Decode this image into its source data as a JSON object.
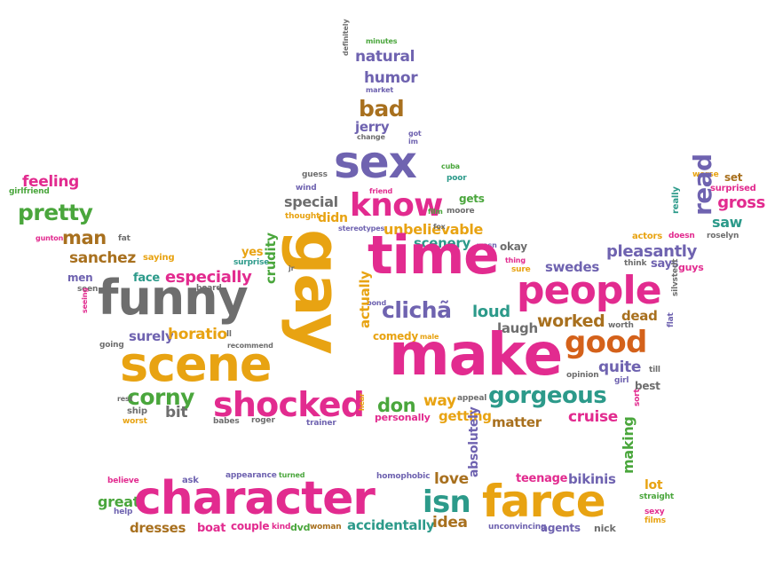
{
  "palette": {
    "pink": "#e22b8f",
    "purple": "#6f63b0",
    "orange": "#e8a312",
    "green": "#4aa63c",
    "gray": "#6e6e6e",
    "teal": "#2c9a8a",
    "brown": "#a8701e",
    "burnt": "#d4611a"
  },
  "words": [
    {
      "text": "minutes",
      "color": "green"
    },
    {
      "text": "natural",
      "color": "purple"
    },
    {
      "text": "definitely",
      "color": "gray"
    },
    {
      "text": "humor",
      "color": "purple"
    },
    {
      "text": "market",
      "color": "purple"
    },
    {
      "text": "bad",
      "color": "brown"
    },
    {
      "text": "jerry",
      "color": "purple"
    },
    {
      "text": "got",
      "color": "purple"
    },
    {
      "text": "change",
      "color": "gray"
    },
    {
      "text": "im",
      "color": "purple"
    },
    {
      "text": "sex",
      "color": "purple"
    },
    {
      "text": "cuba",
      "color": "green"
    },
    {
      "text": "poor",
      "color": "teal"
    },
    {
      "text": "guess",
      "color": "gray"
    },
    {
      "text": "wind",
      "color": "purple"
    },
    {
      "text": "friend",
      "color": "pink"
    },
    {
      "text": "special",
      "color": "gray"
    },
    {
      "text": "know",
      "color": "pink"
    },
    {
      "text": "gets",
      "color": "green"
    },
    {
      "text": "thought",
      "color": "orange"
    },
    {
      "text": "didn",
      "color": "orange"
    },
    {
      "text": "film",
      "color": "green"
    },
    {
      "text": "moore",
      "color": "gray"
    },
    {
      "text": "unbelievable",
      "color": "orange"
    },
    {
      "text": "stereotypes",
      "color": "purple"
    },
    {
      "text": "scenery",
      "color": "teal"
    },
    {
      "text": "wasn",
      "color": "purple"
    },
    {
      "text": "okay",
      "color": "gray"
    },
    {
      "text": "feeling",
      "color": "pink"
    },
    {
      "text": "girlfriend",
      "color": "green"
    },
    {
      "text": "pretty",
      "color": "green"
    },
    {
      "text": "man",
      "color": "brown"
    },
    {
      "text": "fat",
      "color": "gray"
    },
    {
      "text": "gunton",
      "color": "pink"
    },
    {
      "text": "sanchez",
      "color": "brown"
    },
    {
      "text": "saying",
      "color": "orange"
    },
    {
      "text": "yes",
      "color": "orange"
    },
    {
      "text": "surprise",
      "color": "teal"
    },
    {
      "text": "crudity",
      "color": "green"
    },
    {
      "text": "gay",
      "color": "orange"
    },
    {
      "text": "time",
      "color": "pink"
    },
    {
      "text": "thing",
      "color": "pink"
    },
    {
      "text": "sure",
      "color": "orange"
    },
    {
      "text": "men",
      "color": "purple"
    },
    {
      "text": "seen",
      "color": "gray"
    },
    {
      "text": "face",
      "color": "teal"
    },
    {
      "text": "especially",
      "color": "pink"
    },
    {
      "text": "board",
      "color": "gray"
    },
    {
      "text": "funny",
      "color": "gray"
    },
    {
      "text": "seeing",
      "color": "pink"
    },
    {
      "text": "jr",
      "color": "gray"
    },
    {
      "text": "clichã",
      "color": "purple"
    },
    {
      "text": "bond",
      "color": "purple"
    },
    {
      "text": "loud",
      "color": "teal"
    },
    {
      "text": "people",
      "color": "pink"
    },
    {
      "text": "worse",
      "color": "orange"
    },
    {
      "text": "set",
      "color": "brown"
    },
    {
      "text": "surprised",
      "color": "pink"
    },
    {
      "text": "really",
      "color": "teal"
    },
    {
      "text": "read",
      "color": "purple"
    },
    {
      "text": "gross",
      "color": "pink"
    },
    {
      "text": "saw",
      "color": "teal"
    },
    {
      "text": "doesn",
      "color": "pink"
    },
    {
      "text": "roselyn",
      "color": "gray"
    },
    {
      "text": "actors",
      "color": "orange"
    },
    {
      "text": "pleasantly",
      "color": "purple"
    },
    {
      "text": "think",
      "color": "gray"
    },
    {
      "text": "says",
      "color": "purple"
    },
    {
      "text": "guys",
      "color": "pink"
    },
    {
      "text": "swedes",
      "color": "purple"
    },
    {
      "text": "silvstedt",
      "color": "gray"
    },
    {
      "text": "worked",
      "color": "brown"
    },
    {
      "text": "dead",
      "color": "brown"
    },
    {
      "text": "flat",
      "color": "purple"
    },
    {
      "text": "worth",
      "color": "gray"
    },
    {
      "text": "good",
      "color": "burnt"
    },
    {
      "text": "quite",
      "color": "purple"
    },
    {
      "text": "till",
      "color": "gray"
    },
    {
      "text": "opinion",
      "color": "gray"
    },
    {
      "text": "girl",
      "color": "purple"
    },
    {
      "text": "best",
      "color": "gray"
    },
    {
      "text": "surely",
      "color": "purple"
    },
    {
      "text": "horatio",
      "color": "orange"
    },
    {
      "text": "ll",
      "color": "gray"
    },
    {
      "text": "going",
      "color": "gray"
    },
    {
      "text": "recommend",
      "color": "gray"
    },
    {
      "text": "actually",
      "color": "orange"
    },
    {
      "text": "laugh",
      "color": "gray"
    },
    {
      "text": "comedy",
      "color": "orange"
    },
    {
      "text": "male",
      "color": "orange"
    },
    {
      "text": "scene",
      "color": "orange"
    },
    {
      "text": "make",
      "color": "pink"
    },
    {
      "text": "corny",
      "color": "green"
    },
    {
      "text": "shocked",
      "color": "pink"
    },
    {
      "text": "don",
      "color": "green"
    },
    {
      "text": "way",
      "color": "orange"
    },
    {
      "text": "appeal",
      "color": "gray"
    },
    {
      "text": "gorgeous",
      "color": "teal"
    },
    {
      "text": "cruise",
      "color": "pink"
    },
    {
      "text": "sort",
      "color": "pink"
    },
    {
      "text": "ship",
      "color": "gray"
    },
    {
      "text": "bit",
      "color": "gray"
    },
    {
      "text": "rest",
      "color": "gray"
    },
    {
      "text": "worst",
      "color": "orange"
    },
    {
      "text": "babes",
      "color": "gray"
    },
    {
      "text": "roger",
      "color": "gray"
    },
    {
      "text": "trainer",
      "color": "purple"
    },
    {
      "text": "personally",
      "color": "pink"
    },
    {
      "text": "getting",
      "color": "orange"
    },
    {
      "text": "matter",
      "color": "brown"
    },
    {
      "text": "hear",
      "color": "orange"
    },
    {
      "text": "believe",
      "color": "pink"
    },
    {
      "text": "ask",
      "color": "purple"
    },
    {
      "text": "appearance",
      "color": "purple"
    },
    {
      "text": "turned",
      "color": "green"
    },
    {
      "text": "homophobic",
      "color": "purple"
    },
    {
      "text": "love",
      "color": "brown"
    },
    {
      "text": "teenage",
      "color": "pink"
    },
    {
      "text": "bikinis",
      "color": "purple"
    },
    {
      "text": "making",
      "color": "green"
    },
    {
      "text": "lot",
      "color": "orange"
    },
    {
      "text": "great",
      "color": "green"
    },
    {
      "text": "help",
      "color": "purple"
    },
    {
      "text": "character",
      "color": "pink"
    },
    {
      "text": "isn",
      "color": "teal"
    },
    {
      "text": "absolutely",
      "color": "purple"
    },
    {
      "text": "farce",
      "color": "orange"
    },
    {
      "text": "straight",
      "color": "green"
    },
    {
      "text": "sexy",
      "color": "pink"
    },
    {
      "text": "films",
      "color": "orange"
    },
    {
      "text": "dresses",
      "color": "brown"
    },
    {
      "text": "boat",
      "color": "pink"
    },
    {
      "text": "couple",
      "color": "pink"
    },
    {
      "text": "kind",
      "color": "pink"
    },
    {
      "text": "dvd",
      "color": "green"
    },
    {
      "text": "woman",
      "color": "brown"
    },
    {
      "text": "accidentally",
      "color": "teal"
    },
    {
      "text": "idea",
      "color": "brown"
    },
    {
      "text": "unconvincing",
      "color": "purple"
    },
    {
      "text": "agents",
      "color": "purple"
    },
    {
      "text": "nick",
      "color": "gray"
    },
    {
      "text": "fox",
      "color": "gray"
    }
  ]
}
